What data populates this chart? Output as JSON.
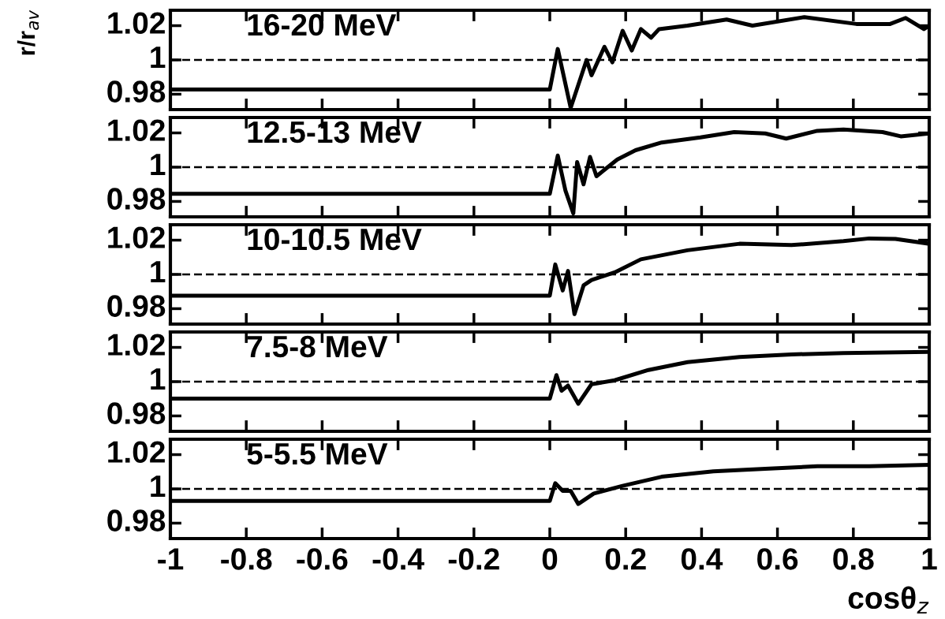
{
  "chart_data": [
    {
      "type": "line",
      "ylabel": "r/r$_{av}$",
      "annotations": [
        "16-20 MeV"
      ],
      "xlim": [
        -1,
        1
      ],
      "xticks": [
        -1,
        -0.8,
        -0.6,
        -0.4,
        -0.2,
        0,
        0.2,
        0.4,
        0.6,
        0.8,
        1
      ],
      "ylim": [
        0.971,
        1.029
      ],
      "yticks": [
        0.98,
        1,
        1.02
      ],
      "tick_labels": "y",
      "ref_lines": [
        {
          "axis": "y",
          "value": 1,
          "line_style": "dashed",
          "color": "#000000"
        }
      ],
      "series": [
        {
          "color": "#000000",
          "x": [
            -1,
            0.0,
            0.021,
            0.055,
            0.097,
            0.11,
            0.144,
            0.165,
            0.192,
            0.216,
            0.24,
            0.267,
            0.288,
            0.363,
            0.466,
            0.534,
            0.671,
            0.808,
            0.897,
            0.938,
            0.986,
            1.0
          ],
          "values": [
            0.9827,
            0.9827,
            1.0064,
            0.972,
            1.0,
            0.991,
            1.0077,
            0.9986,
            1.017,
            1.0055,
            1.018,
            1.013,
            1.018,
            1.02,
            1.0236,
            1.02,
            1.025,
            1.021,
            1.021,
            1.0245,
            1.018,
            1.02
          ]
        }
      ]
    },
    {
      "type": "line",
      "annotations": [
        "12.5-13 MeV"
      ],
      "xlim": [
        -1,
        1
      ],
      "xticks": [
        -1,
        -0.8,
        -0.6,
        -0.4,
        -0.2,
        0,
        0.2,
        0.4,
        0.6,
        0.8,
        1
      ],
      "ylim": [
        0.971,
        1.029
      ],
      "yticks": [
        0.98,
        1,
        1.02
      ],
      "tick_labels": "y",
      "ref_lines": [
        {
          "axis": "y",
          "value": 1,
          "line_style": "dashed",
          "color": "#000000"
        }
      ],
      "series": [
        {
          "color": "#000000",
          "x": [
            -1,
            0.0,
            0.021,
            0.041,
            0.062,
            0.072,
            0.089,
            0.106,
            0.123,
            0.178,
            0.226,
            0.295,
            0.397,
            0.486,
            0.568,
            0.623,
            0.705,
            0.774,
            0.877,
            0.925,
            1.0
          ],
          "values": [
            0.9845,
            0.9845,
            1.0068,
            0.9865,
            0.973,
            1.003,
            0.99,
            1.006,
            0.9947,
            1.0045,
            1.0099,
            1.0144,
            1.0174,
            1.0205,
            1.0197,
            1.0167,
            1.0212,
            1.022,
            1.0205,
            1.018,
            1.0197
          ]
        }
      ]
    },
    {
      "type": "line",
      "annotations": [
        "10-10.5 MeV"
      ],
      "xlim": [
        -1,
        1
      ],
      "xticks": [
        -1,
        -0.8,
        -0.6,
        -0.4,
        -0.2,
        0,
        0.2,
        0.4,
        0.6,
        0.8,
        1
      ],
      "ylim": [
        0.971,
        1.029
      ],
      "yticks": [
        0.98,
        1,
        1.02
      ],
      "tick_labels": "y",
      "ref_lines": [
        {
          "axis": "y",
          "value": 1,
          "line_style": "dashed",
          "color": "#000000"
        }
      ],
      "series": [
        {
          "color": "#000000",
          "x": [
            -1,
            0.0,
            0.0144,
            0.034,
            0.048,
            0.065,
            0.089,
            0.11,
            0.171,
            0.24,
            0.363,
            0.5,
            0.637,
            0.774,
            0.842,
            0.911,
            1.0
          ],
          "values": [
            0.9876,
            0.9876,
            1.0058,
            0.9906,
            1.002,
            0.9768,
            0.9936,
            0.9967,
            1.0012,
            1.0088,
            1.0141,
            1.0179,
            1.0171,
            1.0194,
            1.021,
            1.0207,
            1.0179
          ]
        }
      ]
    },
    {
      "type": "line",
      "annotations": [
        "7.5-8 MeV"
      ],
      "xlim": [
        -1,
        1
      ],
      "xticks": [
        -1,
        -0.8,
        -0.6,
        -0.4,
        -0.2,
        0,
        0.2,
        0.4,
        0.6,
        0.8,
        1
      ],
      "ylim": [
        0.971,
        1.029
      ],
      "yticks": [
        0.98,
        1,
        1.02
      ],
      "tick_labels": "y",
      "ref_lines": [
        {
          "axis": "y",
          "value": 1,
          "line_style": "dashed",
          "color": "#000000"
        }
      ],
      "series": [
        {
          "color": "#000000",
          "x": [
            -1,
            0.0,
            0.0175,
            0.031,
            0.048,
            0.075,
            0.11,
            0.171,
            0.26,
            0.363,
            0.5,
            0.637,
            0.774,
            1.0
          ],
          "values": [
            0.9901,
            0.9901,
            1.0038,
            0.9947,
            0.9977,
            0.9871,
            0.9985,
            1.0008,
            1.0068,
            1.0114,
            1.0144,
            1.0159,
            1.0167,
            1.0174
          ]
        }
      ]
    },
    {
      "type": "line",
      "xlabel": "cosθ$_{z}$",
      "annotations": [
        "5-5.5 MeV"
      ],
      "xlim": [
        -1,
        1
      ],
      "ylim": [
        0.971,
        1.029
      ],
      "xticks": [
        -1,
        -0.8,
        -0.6,
        -0.4,
        -0.2,
        0,
        0.2,
        0.4,
        0.6,
        0.8,
        1
      ],
      "yticks": [
        0.98,
        1,
        1.02
      ],
      "ref_lines": [
        {
          "axis": "y",
          "value": 1,
          "line_style": "dashed",
          "color": "#000000"
        }
      ],
      "series": [
        {
          "color": "#000000",
          "x": [
            -1,
            0.0,
            0.0144,
            0.034,
            0.055,
            0.075,
            0.116,
            0.192,
            0.295,
            0.431,
            0.568,
            0.705,
            0.842,
            1.0
          ],
          "values": [
            0.993,
            0.993,
            1.0033,
            0.9988,
            0.9988,
            0.9912,
            0.9973,
            1.0018,
            1.0071,
            1.0102,
            1.0117,
            1.0132,
            1.0132,
            1.014
          ]
        }
      ]
    }
  ]
}
